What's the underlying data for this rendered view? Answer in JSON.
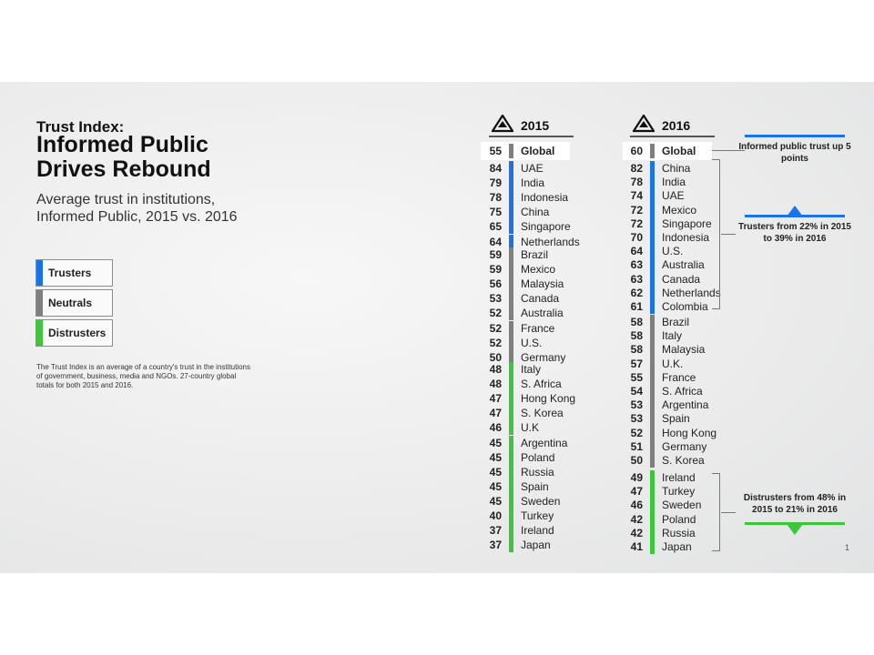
{
  "title_small": "Trust Index:",
  "title_big": "Informed Public Drives Rebound",
  "subtitle": "Average trust in institutions, Informed Public, 2015 vs. 2016",
  "legend": [
    {
      "label": "Trusters",
      "color": "#1a73e8"
    },
    {
      "label": "Neutrals",
      "color": "#7f7f7f"
    },
    {
      "label": "Distrusters",
      "color": "#3cc63c"
    }
  ],
  "note": "The Trust Index is an average of a country's trust in the institutions of government, business, media and NGOs. 27-country global totals for both 2015 and 2016.",
  "colors": {
    "truster": "#1a73e8",
    "neutral": "#7f7f7f",
    "distruster": "#3cc63c",
    "global": "#7f7f7f"
  },
  "y2015": {
    "year": "2015",
    "global": {
      "value": "55",
      "name": "Global"
    },
    "trusters": [
      {
        "value": "84",
        "name": "UAE"
      },
      {
        "value": "79",
        "name": "India"
      },
      {
        "value": "78",
        "name": "Indonesia"
      },
      {
        "value": "75",
        "name": "China"
      },
      {
        "value": "65",
        "name": "Singapore"
      },
      {
        "value": "64",
        "name": "Netherlands"
      }
    ],
    "neutrals": [
      {
        "value": "59",
        "name": "Brazil"
      },
      {
        "value": "59",
        "name": "Mexico"
      },
      {
        "value": "56",
        "name": "Malaysia"
      },
      {
        "value": "53",
        "name": "Canada"
      },
      {
        "value": "52",
        "name": "Australia"
      },
      {
        "value": "52",
        "name": "France"
      },
      {
        "value": "52",
        "name": "U.S."
      },
      {
        "value": "50",
        "name": "Germany"
      }
    ],
    "distrusters": [
      {
        "value": "48",
        "name": "Italy"
      },
      {
        "value": "48",
        "name": "S. Africa"
      },
      {
        "value": "47",
        "name": "Hong Kong"
      },
      {
        "value": "47",
        "name": "S. Korea"
      },
      {
        "value": "46",
        "name": "U.K"
      },
      {
        "value": "45",
        "name": "Argentina"
      },
      {
        "value": "45",
        "name": "Poland"
      },
      {
        "value": "45",
        "name": "Russia"
      },
      {
        "value": "45",
        "name": "Spain"
      },
      {
        "value": "45",
        "name": "Sweden"
      },
      {
        "value": "40",
        "name": "Turkey"
      },
      {
        "value": "37",
        "name": "Ireland"
      },
      {
        "value": "37",
        "name": "Japan"
      }
    ]
  },
  "y2016": {
    "year": "2016",
    "global": {
      "value": "60",
      "name": "Global"
    },
    "trusters": [
      {
        "value": "82",
        "name": "China"
      },
      {
        "value": "78",
        "name": "India"
      },
      {
        "value": "74",
        "name": "UAE"
      },
      {
        "value": "72",
        "name": "Mexico"
      },
      {
        "value": "72",
        "name": "Singapore"
      },
      {
        "value": "70",
        "name": "Indonesia"
      },
      {
        "value": "64",
        "name": "U.S."
      },
      {
        "value": "63",
        "name": "Australia"
      },
      {
        "value": "63",
        "name": "Canada"
      },
      {
        "value": "62",
        "name": "Netherlands"
      },
      {
        "value": "61",
        "name": "Colombia"
      }
    ],
    "neutrals": [
      {
        "value": "58",
        "name": "Brazil"
      },
      {
        "value": "58",
        "name": "Italy"
      },
      {
        "value": "58",
        "name": "Malaysia"
      },
      {
        "value": "57",
        "name": "U.K."
      },
      {
        "value": "55",
        "name": "France"
      },
      {
        "value": "54",
        "name": "S. Africa"
      },
      {
        "value": "53",
        "name": "Argentina"
      },
      {
        "value": "53",
        "name": "Spain"
      },
      {
        "value": "52",
        "name": "Hong Kong"
      },
      {
        "value": "51",
        "name": "Germany"
      },
      {
        "value": "50",
        "name": "S. Korea"
      }
    ],
    "distrusters": [
      {
        "value": "49",
        "name": "Ireland"
      },
      {
        "value": "47",
        "name": "Turkey"
      },
      {
        "value": "46",
        "name": "Sweden"
      },
      {
        "value": "42",
        "name": "Poland"
      },
      {
        "value": "42",
        "name": "Russia"
      },
      {
        "value": "41",
        "name": "Japan"
      }
    ]
  },
  "annotations": {
    "informed": "Informed public trust up 5 points",
    "trusters": "Trusters from 22% in 2015 to 39% in 2016",
    "distrusters": "Distrusters from 48% in 2015 to 21% in 2016"
  },
  "page_number": "1"
}
